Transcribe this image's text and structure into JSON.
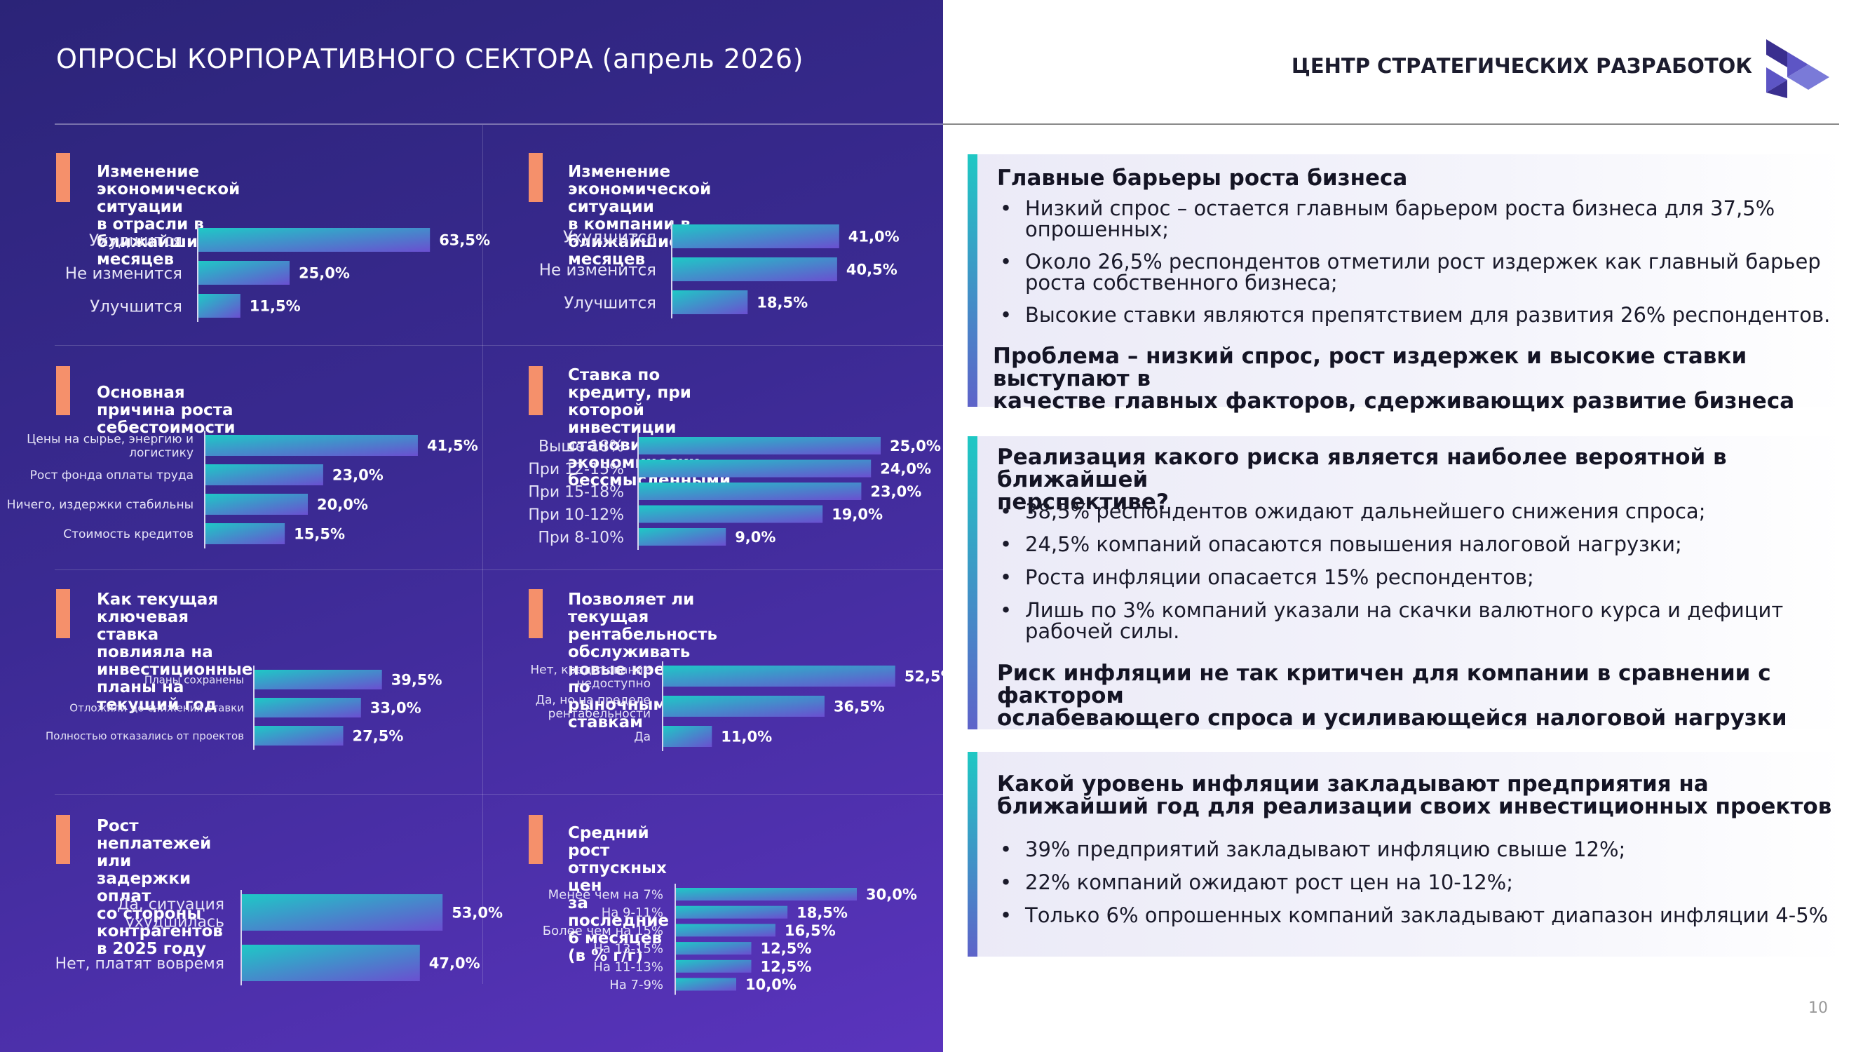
{
  "header": {
    "title": "ОПРОСЫ КОРПОРАТИВНОГО СЕКТОРА (апрель 2026)",
    "brand": "ЦЕНТР СТРАТЕГИЧЕСКИХ РАЗРАБОТОК",
    "logo_icon": "csr-logo-icon"
  },
  "colors": {
    "panel_start": "#2b2478",
    "panel_end": "#5a34bd",
    "accent": "#f5906b",
    "bar_start": "#1ec9c6",
    "bar_end": "#6a4fd0"
  },
  "chart_data": [
    {
      "type": "bar",
      "title": "Изменение экономической ситуации\nв отрасли в ближайшие 12 месяцев",
      "categories": [
        "Ухудшится",
        "Не изменится",
        "Улучшится"
      ],
      "values": [
        63.5,
        25.0,
        11.5
      ],
      "labels": [
        "63,5%",
        "25,0%",
        "11,5%"
      ],
      "ylim": [
        0,
        100
      ]
    },
    {
      "type": "bar",
      "title": "Изменение экономической ситуации\nв компании в ближайшие 12 месяцев",
      "categories": [
        "Ухудшится",
        "Не изменится",
        "Улучшится"
      ],
      "values": [
        41.0,
        40.5,
        18.5
      ],
      "labels": [
        "41,0%",
        "40,5%",
        "18,5%"
      ],
      "ylim": [
        0,
        100
      ]
    },
    {
      "type": "bar",
      "title": "Основная причина роста себестоимости",
      "categories": [
        "Цены на сырье, энергию и\nлогистику",
        "Рост фонда оплаты труда",
        "Ничего, издержки стабильны",
        "Стоимость кредитов"
      ],
      "values": [
        41.5,
        23.0,
        20.0,
        15.5
      ],
      "labels": [
        "41,5%",
        "23,0%",
        "20,0%",
        "15,5%"
      ],
      "ylim": [
        0,
        100
      ]
    },
    {
      "type": "bar",
      "title": "Ставка по кредиту, при которой\nинвестиции становится\nэкономически бессмысленными",
      "categories": [
        "Выше 18%",
        "При 12-15%",
        "При 15-18%",
        "При 10-12%",
        "При 8-10%"
      ],
      "values": [
        25.0,
        24.0,
        23.0,
        19.0,
        9.0
      ],
      "labels": [
        "25,0%",
        "24,0%",
        "23,0%",
        "19,0%",
        "9,0%"
      ],
      "ylim": [
        0,
        100
      ]
    },
    {
      "type": "bar",
      "title": "Как текущая ключевая ставка\nповлияла на инвестиционные\nпланы на текущий год",
      "categories": [
        "Планы сохранены",
        "Отложили до снижения ставки",
        "Полностью отказались от проектов"
      ],
      "values": [
        39.5,
        33.0,
        27.5
      ],
      "labels": [
        "39,5%",
        "33,0%",
        "27,5%"
      ],
      "ylim": [
        0,
        100
      ]
    },
    {
      "type": "bar",
      "title": "Позволяет ли текущая рентабельность\nобслуживать новые кредиты по\nрыночным ставкам",
      "categories": [
        "Нет, кредитование\nнедоступно",
        "Да, но на пределе\nрентабельности",
        "Да"
      ],
      "values": [
        52.5,
        36.5,
        11.0
      ],
      "labels": [
        "52,5%",
        "36,5%",
        "11,0%"
      ],
      "ylim": [
        0,
        100
      ]
    },
    {
      "type": "bar",
      "title": "Рост неплатежей или задержки оплат\nсо стороны контрагентов в 2025 году",
      "categories": [
        "Да, ситуация\nухудшилась",
        "Нет, платят вовремя"
      ],
      "values": [
        53.0,
        47.0
      ],
      "labels": [
        "53,0%",
        "47,0%"
      ],
      "ylim": [
        0,
        100
      ]
    },
    {
      "type": "bar",
      "title": "Средний рост отпускных цен\nза последние 6 месяцев (в % г/г)",
      "categories": [
        "Менее чем на 7%",
        "На 9-11%",
        "Более чем на 15%",
        "На 13-15%",
        "На 11-13%",
        "На 7-9%"
      ],
      "values": [
        30.0,
        18.5,
        16.5,
        12.5,
        12.5,
        10.0
      ],
      "labels": [
        "30,0%",
        "18,5%",
        "16,5%",
        "12,5%",
        "12,5%",
        "10,0%"
      ],
      "ylim": [
        0,
        100
      ]
    }
  ],
  "cards": [
    {
      "heading": "Главные барьеры роста бизнеса",
      "items": [
        "Низкий спрос – остается главным барьером роста бизнеса для 37,5%\nопрошенных;",
        "Около 26,5% респондентов отметили рост издержек как главный барьер\nроста собственного бизнеса;",
        "Высокие ставки являются препятствием для развития 26% респондентов."
      ],
      "summary": "Проблема – низкий спрос, рост издержек и высокие ставки выступают в\nкачестве главных факторов, сдерживающих развитие бизнеса"
    },
    {
      "heading": "Реализация какого риска является наиболее вероятной в ближайшей\nперспективе?",
      "items": [
        "38,5% респондентов ожидают дальнейшего снижения спроса;",
        "24,5% компаний опасаются повышения налоговой нагрузки;",
        "Роста инфляции опасается 15% респондентов;",
        "Лишь по 3% компаний указали на скачки валютного курса и дефицит\nрабочей силы."
      ],
      "summary": "Риск инфляции не так критичен для компании в сравнении с фактором\nослабевающего спроса и усиливающейся налоговой нагрузки"
    },
    {
      "heading": "Какой уровень инфляции закладывают предприятия на\nближайший год для реализации своих инвестиционных проектов",
      "items": [
        "39% предприятий закладывают инфляцию свыше 12%;",
        "22% компаний ожидают рост цен на 10-12%;",
        "Только 6% опрошенных компаний закладывают диапазон инфляции 4-5%"
      ]
    }
  ],
  "footer": {
    "page_number": "10"
  }
}
